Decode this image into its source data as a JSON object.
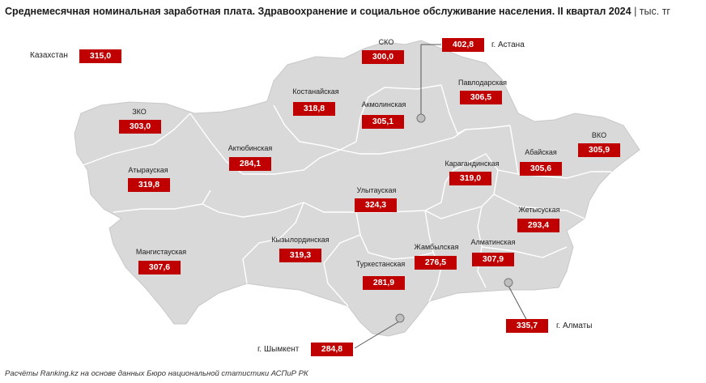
{
  "title": "Среднемесячная номинальная заработная плата. Здравоохранение и социальное обслуживание населения. II квартал 2024",
  "unit": "тыс. тг",
  "kazakhstan": {
    "label": "Казахстан",
    "value": "315,0"
  },
  "regions": {
    "sko": {
      "label": "СКО",
      "value": "300,0"
    },
    "zko": {
      "label": "ЗКО",
      "value": "303,0"
    },
    "kostanay": {
      "label": "Костанайская",
      "value": "318,8"
    },
    "akmola": {
      "label": "Акмолинская",
      "value": "305,1"
    },
    "pavlodar": {
      "label": "Павлодарская",
      "value": "306,5"
    },
    "aktobe": {
      "label": "Актюбинская",
      "value": "284,1"
    },
    "atyrau": {
      "label": "Атырауская",
      "value": "319,8"
    },
    "vko": {
      "label": "ВКО",
      "value": "305,9"
    },
    "abay": {
      "label": "Абайская",
      "value": "305,6"
    },
    "karaganda": {
      "label": "Карагандинская",
      "value": "319,0"
    },
    "ulytau": {
      "label": "Улытауская",
      "value": "324,3"
    },
    "zhetysu": {
      "label": "Жетысуская",
      "value": "293,4"
    },
    "mangystau": {
      "label": "Мангистауская",
      "value": "307,6"
    },
    "kyzylorda": {
      "label": "Кызылординская",
      "value": "319,3"
    },
    "zhambyl": {
      "label": "Жамбылская",
      "value": "276,5"
    },
    "almaty_reg": {
      "label": "Алматинская",
      "value": "307,9"
    },
    "turkestan": {
      "label": "Туркестанская",
      "value": "281,9"
    }
  },
  "cities": {
    "astana": {
      "label": "г. Астана",
      "value": "402,8"
    },
    "almaty": {
      "label": "г. Алматы",
      "value": "335,7"
    },
    "shymkent": {
      "label": "г. Шымкент",
      "value": "284,8"
    }
  },
  "colors": {
    "land": "#d9d9d9",
    "border": "#ffffff",
    "accent": "#c00000"
  },
  "footer": "Расчёты Ranking.kz на основе данных Бюро национальной статистики АСПиР РК"
}
